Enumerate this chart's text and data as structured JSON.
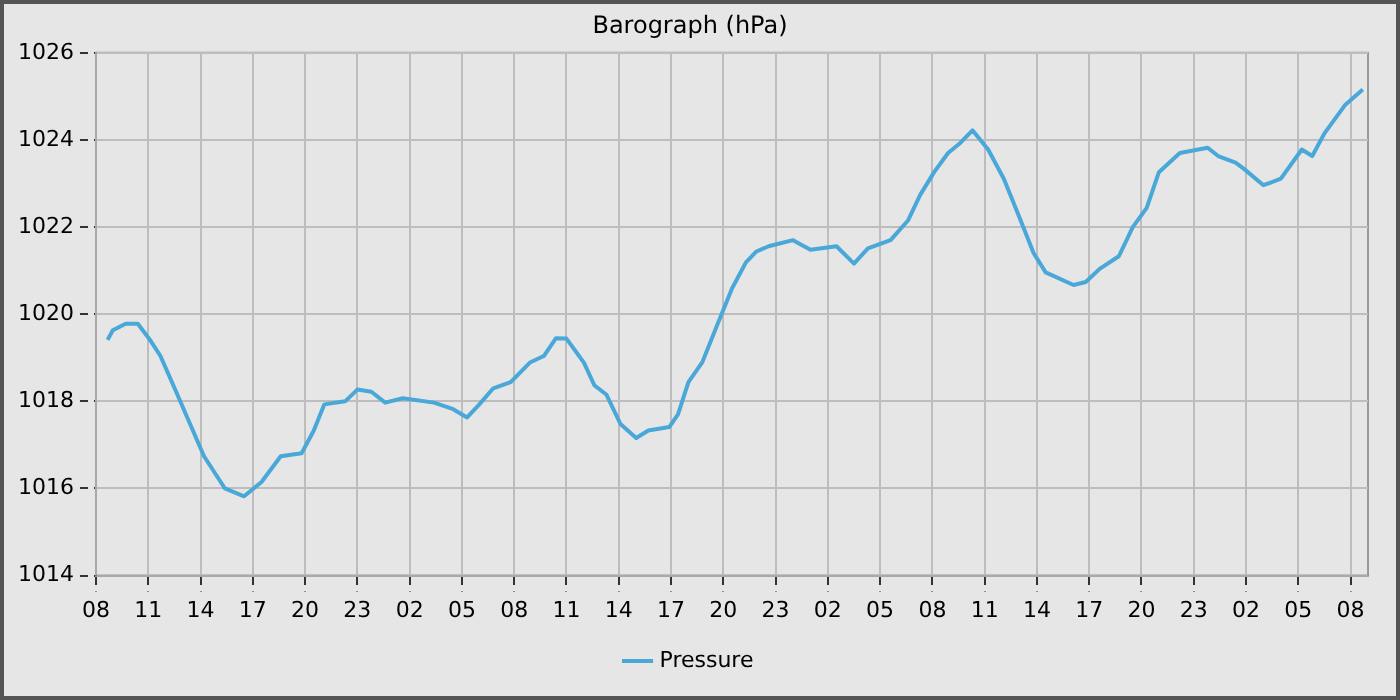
{
  "chart_data": {
    "type": "line",
    "title": "Barograph (hPa)",
    "xlim": [
      "--01-01T08:00",
      "--01-04T09:00"
    ],
    "xticks": [
      {
        "value": "--01-01T08:00",
        "label": "08"
      },
      {
        "value": "--01-01T11:00",
        "label": "11"
      },
      {
        "value": "--01-01T14:00",
        "label": "14"
      },
      {
        "value": "--01-01T17:00",
        "label": "17"
      },
      {
        "value": "--01-01T20:00",
        "label": "20"
      },
      {
        "value": "--01-01T23:00",
        "label": "23"
      },
      {
        "value": "--01-02T02:00",
        "label": "02"
      },
      {
        "value": "--01-02T05:00",
        "label": "05"
      },
      {
        "value": "--01-02T08:00",
        "label": "08"
      },
      {
        "value": "--01-02T11:00",
        "label": "11"
      },
      {
        "value": "--01-02T14:00",
        "label": "14"
      },
      {
        "value": "--01-02T17:00",
        "label": "17"
      },
      {
        "value": "--01-02T20:00",
        "label": "20"
      },
      {
        "value": "--01-02T23:00",
        "label": "23"
      },
      {
        "value": "--01-03T02:00",
        "label": "02"
      },
      {
        "value": "--01-03T05:00",
        "label": "05"
      },
      {
        "value": "--01-03T08:00",
        "label": "08"
      },
      {
        "value": "--01-03T11:00",
        "label": "11"
      },
      {
        "value": "--01-03T14:00",
        "label": "14"
      },
      {
        "value": "--01-03T17:00",
        "label": "17"
      },
      {
        "value": "--01-03T20:00",
        "label": "20"
      },
      {
        "value": "--01-03T23:00",
        "label": "23"
      },
      {
        "value": "--01-04T02:00",
        "label": "02"
      },
      {
        "value": "--01-04T05:00",
        "label": "05"
      },
      {
        "value": "--01-04T08:00",
        "label": "08"
      }
    ],
    "ylim": [
      1014,
      1026
    ],
    "yticks": [
      1014,
      1016,
      1018,
      1020,
      1022,
      1024,
      1026
    ],
    "grid": true,
    "legend": "bottom",
    "marker": "none",
    "line_style": "solid",
    "series": [
      {
        "name": "Pressure",
        "color": "#4aa8d8",
        "x": [
          "--01-01T08:40",
          "--01-01T08:58",
          "--01-01T09:42",
          "--01-01T10:24",
          "--01-01T11:06",
          "--01-01T11:42",
          "--01-01T12:36",
          "--01-01T13:24",
          "--01-01T14:12",
          "--01-01T15:24",
          "--01-01T16:30",
          "--01-01T17:30",
          "--01-01T18:36",
          "--01-01T19:48",
          "--01-01T20:30",
          "--01-01T21:06",
          "--01-01T22:18",
          "--01-01T23:00",
          "--01-01T23:48",
          "--01-02T00:36",
          "--01-02T01:36",
          "--01-02T03:24",
          "--01-02T04:30",
          "--01-02T05:18",
          "--01-02T06:00",
          "--01-02T06:48",
          "--01-02T07:48",
          "--01-02T08:54",
          "--01-02T09:42",
          "--01-02T10:24",
          "--01-02T11:00",
          "--01-02T12:00",
          "--01-02T12:36",
          "--01-02T13:18",
          "--01-02T14:06",
          "--01-02T15:00",
          "--01-02T15:42",
          "--01-02T16:54",
          "--01-02T17:24",
          "--01-02T18:00",
          "--01-02T18:48",
          "--01-02T19:36",
          "--01-02T20:30",
          "--01-02T21:18",
          "--01-02T21:54",
          "--01-02T22:36",
          "--01-03T00:00",
          "--01-03T01:00",
          "--01-03T02:30",
          "--01-03T03:30",
          "--01-03T04:18",
          "--01-03T05:36",
          "--01-03T06:36",
          "--01-03T07:18",
          "--01-03T08:06",
          "--01-03T08:54",
          "--01-03T09:36",
          "--01-03T10:18",
          "--01-03T11:12",
          "--01-03T12:06",
          "--01-03T13:00",
          "--01-03T13:48",
          "--01-03T14:30",
          "--01-03T16:06",
          "--01-03T16:48",
          "--01-03T17:36",
          "--01-03T18:42",
          "--01-03T19:30",
          "--01-03T20:18",
          "--01-03T21:00",
          "--01-03T22:12",
          "--01-03T23:48",
          "--01-04T00:24",
          "--01-04T01:24",
          "--01-04T01:54",
          "--01-04T03:00",
          "--01-04T04:00",
          "--01-04T05:12",
          "--01-04T05:48",
          "--01-04T06:30",
          "--01-04T07:42",
          "--01-04T08:42"
        ],
        "values": [
          1019.41,
          1019.63,
          1019.78,
          1019.78,
          1019.41,
          1019.04,
          1018.22,
          1017.48,
          1016.74,
          1016.0,
          1015.82,
          1016.15,
          1016.74,
          1016.81,
          1017.33,
          1017.93,
          1018.0,
          1018.27,
          1018.22,
          1017.97,
          1018.07,
          1017.97,
          1017.82,
          1017.63,
          1017.93,
          1018.3,
          1018.44,
          1018.89,
          1019.04,
          1019.45,
          1019.44,
          1018.89,
          1018.37,
          1018.15,
          1017.48,
          1017.16,
          1017.33,
          1017.41,
          1017.7,
          1018.44,
          1018.9,
          1019.7,
          1020.59,
          1021.19,
          1021.44,
          1021.56,
          1021.7,
          1021.48,
          1021.56,
          1021.16,
          1021.51,
          1021.7,
          1022.15,
          1022.74,
          1023.26,
          1023.7,
          1023.93,
          1024.22,
          1023.78,
          1023.11,
          1022.22,
          1021.41,
          1020.96,
          1020.67,
          1020.74,
          1021.04,
          1021.33,
          1022.0,
          1022.44,
          1023.26,
          1023.7,
          1023.82,
          1023.63,
          1023.48,
          1023.33,
          1022.96,
          1023.11,
          1023.78,
          1023.63,
          1024.15,
          1024.81,
          1025.16
        ]
      }
    ]
  }
}
